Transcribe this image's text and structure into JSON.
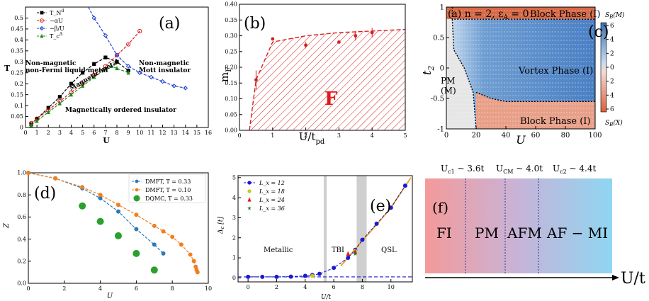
{
  "chart_data": [
    {
      "type": "line",
      "panel_label": "(a)",
      "xlabel": "U",
      "ylabel": "T",
      "xlim": [
        0,
        16
      ],
      "ylim": [
        0,
        0.55
      ],
      "xticks": [
        0,
        1,
        2,
        3,
        4,
        5,
        6,
        7,
        8,
        9,
        10,
        11,
        12,
        13,
        14,
        15,
        16
      ],
      "yticks": [
        0,
        0.05,
        0.1,
        0.15,
        0.2,
        0.25,
        0.3,
        0.35,
        0.4,
        0.45,
        0.5
      ],
      "series": [
        {
          "name": "T_N",
          "name_sup": "d",
          "color": "#000000",
          "marker": "square",
          "x": [
            0.5,
            1,
            2,
            3,
            4,
            5,
            6,
            7,
            8,
            9
          ],
          "y": [
            0.015,
            0.04,
            0.09,
            0.14,
            0.2,
            0.25,
            0.29,
            0.32,
            0.3,
            0.26
          ]
        },
        {
          "name": "~αU",
          "color": "#d62020",
          "marker": "circle-open",
          "x": [
            0.5,
            1,
            2,
            3,
            4,
            5,
            6,
            7,
            8,
            9,
            10
          ],
          "y": [
            0.02,
            0.04,
            0.08,
            0.12,
            0.16,
            0.2,
            0.24,
            0.28,
            0.33,
            0.38,
            0.44
          ]
        },
        {
          "name": "~β/U",
          "color": "#1f3fd6",
          "marker": "diamond-open",
          "x": [
            5.5,
            6,
            7,
            8,
            9,
            10,
            11,
            12,
            13,
            14
          ],
          "y": [
            0.58,
            0.5,
            0.42,
            0.33,
            0.28,
            0.25,
            0.23,
            0.21,
            0.19,
            0.18
          ]
        },
        {
          "name": "T_c",
          "name_sup": "Δ",
          "color": "#1a8a1a",
          "marker": "triangle",
          "x": [
            0.5,
            1,
            2,
            3,
            4,
            5,
            6,
            7,
            7.5,
            8,
            9
          ],
          "y": [
            0.01,
            0.03,
            0.07,
            0.11,
            0.15,
            0.19,
            0.23,
            0.27,
            0.28,
            0.27,
            0.25
          ]
        }
      ],
      "annotations": [
        "Non-magnetic non-Fermi liquid metal",
        "Magnetic metal",
        "Non-magnetic Mott insulator",
        "Magnetically ordered insulator"
      ]
    },
    {
      "type": "scatter",
      "panel_label": "(b)",
      "xlabel": "U/t",
      "xlabel_sub": "pd",
      "ylabel": "m",
      "ylabel_sub": "F",
      "xlim": [
        0,
        5
      ],
      "ylim": [
        0,
        0.4
      ],
      "xticks": [
        0,
        1,
        2,
        3,
        4,
        5
      ],
      "yticks": [
        0.0,
        0.05,
        0.1,
        0.15,
        0.2,
        0.25,
        0.3,
        0.35,
        0.4
      ],
      "region_label": "F",
      "points": {
        "x": [
          0.5,
          1,
          2,
          3,
          3.5,
          4
        ],
        "y": [
          0.16,
          0.29,
          0.27,
          0.28,
          0.3,
          0.31
        ],
        "yerr": [
          0.03,
          0.005,
          0.01,
          0.005,
          0.015,
          0.015
        ]
      },
      "boundary": {
        "x": [
          0.3,
          0.5,
          1,
          2,
          3,
          4,
          5
        ],
        "y": [
          0.0,
          0.16,
          0.28,
          0.3,
          0.31,
          0.315,
          0.32
        ]
      }
    },
    {
      "type": "heatmap",
      "panel_label": "(c)",
      "title_text": "(a) n = 2, ε",
      "title_sub": "A",
      "title_tail": " = 0",
      "xlabel": "U",
      "ylabel": "t",
      "ylabel_sub": "2",
      "xlim": [
        0,
        100
      ],
      "ylim": [
        -1,
        1
      ],
      "xticks": [
        0,
        20,
        40,
        60,
        80,
        100
      ],
      "yticks": [
        -1,
        -0.5,
        0,
        0.5,
        1
      ],
      "colorbar": {
        "ticks_top": [
          6,
          4,
          2,
          0
        ],
        "ticks_bottom": [
          2,
          4,
          6
        ],
        "top_label": "S_B(M)",
        "bottom_label": "S_B(X)"
      },
      "regions": [
        "Block Phase (I)",
        "Vortex Phase (I)",
        "Block Phase (I)",
        "PM",
        "(M)"
      ]
    },
    {
      "type": "line",
      "panel_label": "(d)",
      "xlabel": "U",
      "ylabel": "Z",
      "xlim": [
        0,
        10
      ],
      "ylim": [
        0,
        1
      ],
      "xticks": [
        0,
        2,
        4,
        6,
        8,
        10
      ],
      "yticks": [
        0.0,
        0.2,
        0.4,
        0.6,
        0.8,
        1.0
      ],
      "series": [
        {
          "name": "DMFT, T = 0.33",
          "color": "#2a7ab8",
          "marker": "dot",
          "x": [
            0,
            1.5,
            3,
            4,
            5,
            6,
            7,
            7.5
          ],
          "y": [
            1.0,
            0.95,
            0.86,
            0.77,
            0.65,
            0.49,
            0.35,
            0.27
          ]
        },
        {
          "name": "DMFT, T = 0.10",
          "color": "#f07f1e",
          "marker": "dot",
          "x": [
            0,
            1.5,
            3,
            4,
            5,
            6,
            7,
            7.5,
            8,
            8.5,
            9,
            9.2,
            9.3,
            9.35,
            9.4
          ],
          "y": [
            1.0,
            0.95,
            0.87,
            0.8,
            0.71,
            0.62,
            0.52,
            0.47,
            0.42,
            0.35,
            0.26,
            0.2,
            0.15,
            0.12,
            0.1
          ]
        },
        {
          "name": "DQMC, T = 0.33",
          "color": "#2ca02c",
          "marker": "big-dot",
          "x": [
            3,
            4,
            5,
            6,
            7
          ],
          "y": [
            0.7,
            0.56,
            0.43,
            0.27,
            0.12
          ]
        }
      ]
    },
    {
      "type": "line",
      "panel_label": "(e)",
      "xlabel": "U/t",
      "ylabel": "Δ",
      "ylabel_sub": "c",
      "ylabel_tail": " [t]",
      "xlim": [
        -0.7,
        11.5
      ],
      "ylim": [
        -0.2,
        5.1
      ],
      "xticks": [
        0,
        2,
        4,
        6,
        8,
        10
      ],
      "yticks": [
        0,
        1,
        2,
        3,
        4,
        5
      ],
      "regions": [
        "Metallic",
        "TBI",
        "QSL"
      ],
      "series": [
        {
          "name": "L_x = 12",
          "color": "#1a1ad0",
          "marker": "dot",
          "x": [
            0,
            1,
            2,
            3,
            4,
            4.5,
            5,
            6,
            7,
            7.5,
            8,
            9,
            10,
            11
          ],
          "y": [
            0.05,
            0.05,
            0.05,
            0.06,
            0.1,
            0.14,
            0.2,
            0.5,
            1.0,
            1.4,
            1.9,
            2.7,
            3.5,
            4.6
          ]
        },
        {
          "name": "L_x = 18",
          "color": "#c8c81a",
          "marker": "dot",
          "x": [
            4.5,
            7.5
          ],
          "y": [
            0.1,
            1.35
          ]
        },
        {
          "name": "L_x = 24",
          "color": "#e01a1a",
          "marker": "triangle",
          "x": [
            7,
            7.5
          ],
          "y": [
            1.2,
            1.3
          ]
        },
        {
          "name": "L_x = 36",
          "color": "#1a7a1a",
          "marker": "star",
          "x": [
            7.5
          ],
          "y": [
            1.2
          ]
        }
      ]
    },
    {
      "type": "bar",
      "panel_label": "(f)",
      "xlabel": "U/t",
      "thresholds": [
        "U_c1 ~ 3.6t",
        "U_CM ~ 4.0t",
        "U_c2 ~ 4.4t"
      ],
      "phases": [
        "FI",
        "PM",
        "AFM",
        "AF − MI"
      ]
    }
  ]
}
